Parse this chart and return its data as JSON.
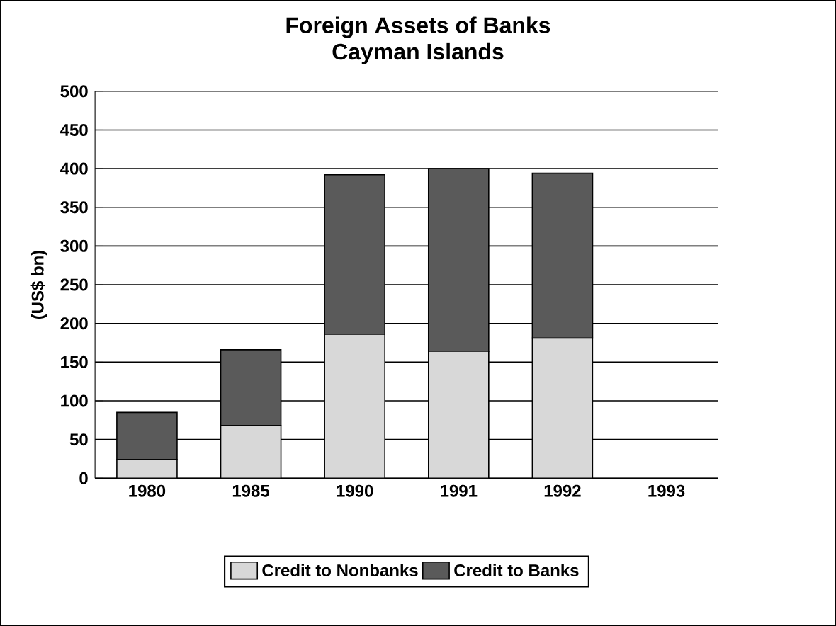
{
  "chart_data": {
    "type": "bar",
    "stacked": true,
    "title": "Foreign Assets of Banks",
    "subtitle": "Cayman Islands",
    "ylabel": "(US$ bn)",
    "categories": [
      "1980",
      "1985",
      "1990",
      "1991",
      "1992",
      "1993"
    ],
    "series": [
      {
        "name": "Credit to Nonbanks",
        "color": "#d8d8d8",
        "values": [
          24,
          68,
          186,
          164,
          181,
          null
        ]
      },
      {
        "name": "Credit to Banks",
        "color": "#5a5a5a",
        "values": [
          61,
          98,
          206,
          236,
          213,
          null
        ]
      }
    ],
    "ylim": [
      0,
      500
    ],
    "yticks": [
      0,
      50,
      100,
      150,
      200,
      250,
      300,
      350,
      400,
      450,
      500
    ],
    "grid": "y",
    "legend": "bottom"
  }
}
